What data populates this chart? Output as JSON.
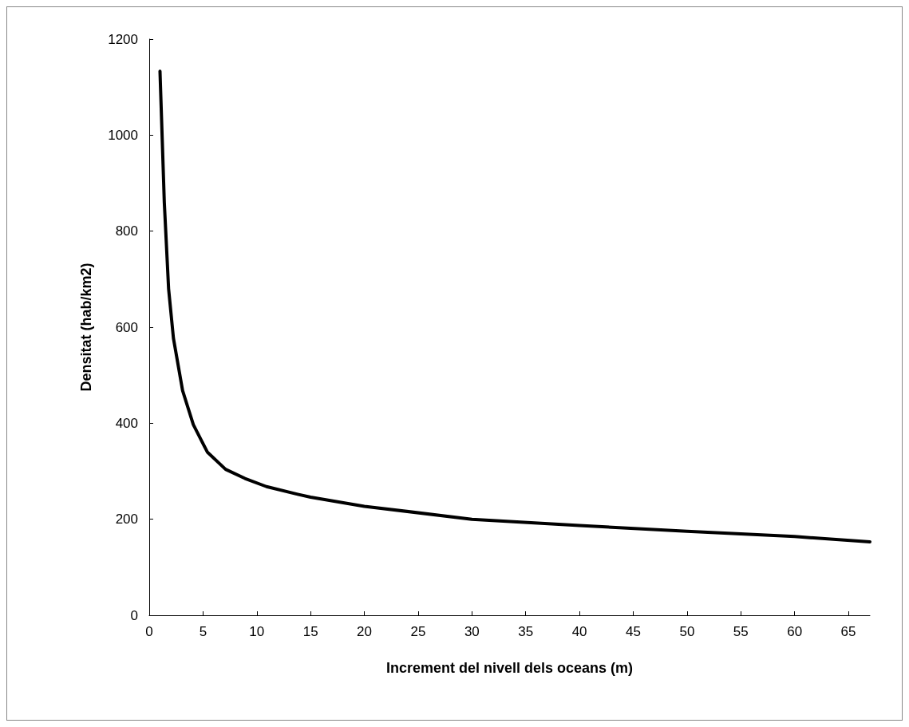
{
  "chart_data": {
    "type": "line",
    "xlabel": "Increment del nivell dels oceans (m)",
    "ylabel": "Densitat (hab/km2)",
    "x": [
      1,
      1.4,
      1.8,
      2.25,
      3.1,
      4.1,
      5.4,
      7.1,
      8.9,
      10.9,
      13.8,
      15,
      20,
      30,
      40,
      50,
      60,
      67
    ],
    "series": [
      {
        "color": "#000000",
        "values": [
          1133,
          860,
          680,
          577,
          468,
          397,
          340,
          304,
          285,
          268,
          252,
          246,
          227,
          200,
          187,
          175,
          164,
          153
        ]
      }
    ],
    "xlim": [
      0,
      67
    ],
    "xticks": [
      0,
      5,
      10,
      15,
      20,
      25,
      30,
      35,
      40,
      45,
      50,
      55,
      60,
      65
    ],
    "ylim": [
      0,
      1200
    ],
    "yticks": [
      0,
      200,
      400,
      600,
      800,
      1000,
      1200
    ],
    "grid": false,
    "marker": "none",
    "line_style": "solid"
  }
}
